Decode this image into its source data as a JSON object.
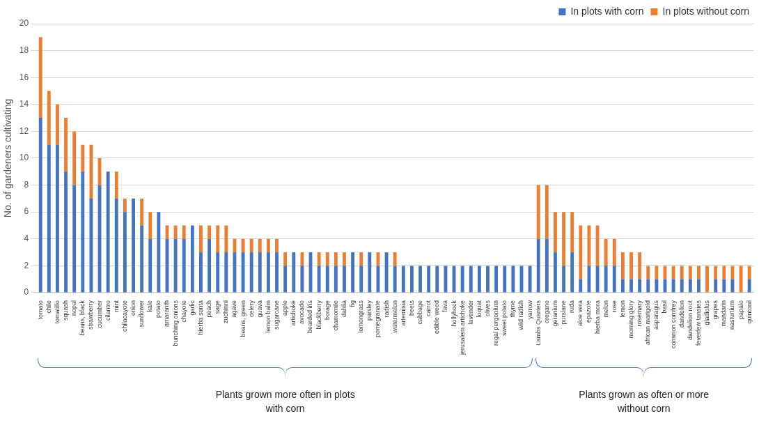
{
  "chart_data": {
    "type": "bar",
    "stacked": true,
    "ylabel": "No. of gardeners cultivating",
    "categories": [
      "tomato",
      "chile",
      "tomatillo",
      "squash",
      "nopal",
      "beans, black",
      "strawberry",
      "cucumber",
      "cilantro",
      "mint",
      "chilacayote",
      "onion",
      "sunflower",
      "kale",
      "potato",
      "amaranth",
      "bunching onions",
      "chayote",
      "garlic",
      "hierba santa",
      "peach",
      "sage",
      "zuchinni",
      "agave",
      "beans, green",
      "celery",
      "guava",
      "lemon balm",
      "sugarcane",
      "apple",
      "artichoke",
      "avocado",
      "bearded iris",
      "blackberry",
      "borage",
      "chamomile",
      "dahlia",
      "fig",
      "lemongrass",
      "parsley",
      "pomegranate",
      "radish",
      "watermelon",
      "artemisia",
      "beets",
      "cabbage",
      "carrot",
      "edible weed",
      "fava",
      "hollyhock",
      "jerusalem artichoke",
      "lavender",
      "loquat",
      "olives",
      "regal pergonium",
      "sweet potato",
      "thyme",
      "wild radish",
      "yarrow",
      "Lambs Quarters",
      "oregano",
      "geranium",
      "purslane",
      "ruda",
      "aloe vera",
      "epazote",
      "hierba mora",
      "melon",
      "rose",
      "lemon",
      "morning glory",
      "rosemary",
      "african marigold",
      "asparagus",
      "basil",
      "common comfrey",
      "dandelion",
      "dandelion root",
      "feverfew tansies",
      "gladiolus",
      "grapes",
      "mandarin",
      "nasturtium",
      "papalo",
      "quintonil"
    ],
    "series": [
      {
        "name": "In plots with corn",
        "color": "#4472c4",
        "values": [
          13,
          11,
          11,
          9,
          8,
          9,
          7,
          8,
          9,
          7,
          6,
          7,
          5,
          4,
          6,
          4,
          4,
          4,
          5,
          3,
          4,
          3,
          3,
          3,
          3,
          3,
          3,
          3,
          3,
          2,
          3,
          2,
          3,
          2,
          2,
          2,
          2,
          3,
          2,
          3,
          2,
          3,
          2,
          2,
          2,
          2,
          2,
          2,
          2,
          2,
          2,
          2,
          2,
          2,
          2,
          2,
          2,
          2,
          2,
          4,
          4,
          3,
          2,
          3,
          1,
          2,
          2,
          2,
          2,
          1,
          1,
          1,
          1,
          1,
          1,
          1,
          1,
          1,
          1,
          0,
          1,
          1,
          1,
          0,
          1
        ]
      },
      {
        "name": "In plots without corn",
        "color": "#ed7d31",
        "values": [
          6,
          4,
          3,
          4,
          4,
          2,
          4,
          2,
          0,
          2,
          1,
          0,
          2,
          2,
          0,
          1,
          1,
          1,
          0,
          2,
          1,
          2,
          2,
          1,
          1,
          1,
          1,
          1,
          1,
          1,
          0,
          1,
          0,
          1,
          1,
          1,
          1,
          0,
          1,
          0,
          1,
          0,
          1,
          0,
          0,
          0,
          0,
          0,
          0,
          0,
          0,
          0,
          0,
          0,
          0,
          0,
          0,
          0,
          0,
          4,
          4,
          3,
          4,
          3,
          4,
          3,
          3,
          2,
          2,
          2,
          2,
          2,
          1,
          1,
          1,
          1,
          1,
          1,
          1,
          2,
          1,
          1,
          1,
          2,
          1
        ]
      }
    ],
    "ylim": [
      0,
      20
    ],
    "yticks": [
      0,
      2,
      4,
      6,
      8,
      10,
      12,
      14,
      16,
      18,
      20
    ],
    "grid": "y",
    "legend": "top right",
    "annotations": [
      "Plants grown more often in plots with corn",
      "Plants grown as often or more without corn"
    ]
  }
}
